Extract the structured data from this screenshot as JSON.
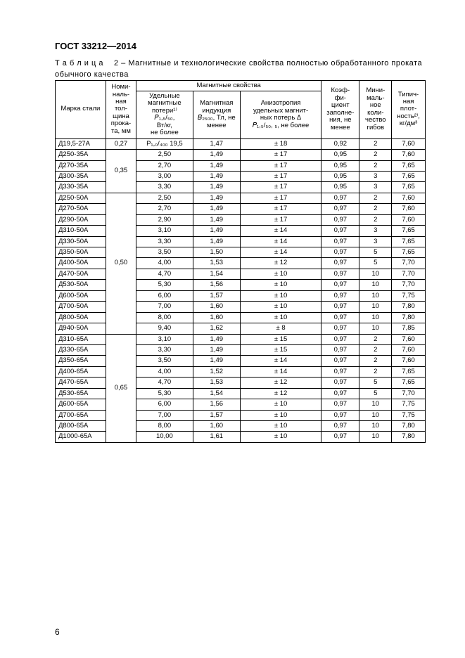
{
  "std_header": "ГОСТ 33212—2014",
  "caption_line1": "Т а б л и ц а  2 – Магнитные и технологические свойства полностью обработанного проката",
  "caption_line2": "обычного качества",
  "page_number": "6",
  "headers": {
    "c1": "Марка стали",
    "c2": "Номи-\nналь-\nная\nтол-\nщина\nпрока-\nта, мм",
    "magnetic_group": "Магнитные свойства",
    "c3": "Удельные\nмагнитные\nпотери¹⁾\n𝑃₁,₅/₅₀,\nВт/кг,\nне более",
    "c4": "Магнитная\nиндукция\n𝐵₂₅₀₀, Тл, не\nменее",
    "c5": "Анизотропия\nудельных магнит-\nных потерь Δ\n𝑃₁,₅/₅₀, ₅, не более",
    "c6": "Коэф-\nфи-\nциент\nзаполне-\nния, не\nменее",
    "c7": "Мини-\nмаль-\nное\nколи-\nчество\nгибов",
    "c8": "Типич-\nная\nплот-\nность²⁾,\nкг/дм³"
  },
  "groups": [
    {
      "thickness": "0,27",
      "rows": [
        {
          "grade": "Д19,5-27А",
          "loss": "P₁,₀/₄₀₀ 19,5",
          "B": "1,47",
          "aniso": "± 18",
          "fill": "0,92",
          "bends": "2",
          "density": "7,60"
        }
      ]
    },
    {
      "thickness": "0,35",
      "rows": [
        {
          "grade": "Д250-35А",
          "loss": "2,50",
          "B": "1,49",
          "aniso": "± 17",
          "fill": "0,95",
          "bends": "2",
          "density": "7,60"
        },
        {
          "grade": "Д270-35А",
          "loss": "2,70",
          "B": "1,49",
          "aniso": "± 17",
          "fill": "0,95",
          "bends": "2",
          "density": "7,65"
        },
        {
          "grade": "Д300-35А",
          "loss": "3,00",
          "B": "1,49",
          "aniso": "± 17",
          "fill": "0,95",
          "bends": "3",
          "density": "7,65"
        },
        {
          "grade": "Д330-35А",
          "loss": "3,30",
          "B": "1,49",
          "aniso": "± 17",
          "fill": "0,95",
          "bends": "3",
          "density": "7,65"
        }
      ]
    },
    {
      "thickness": "0,50",
      "rows": [
        {
          "grade": "Д250-50А",
          "loss": "2,50",
          "B": "1,49",
          "aniso": "± 17",
          "fill": "0,97",
          "bends": "2",
          "density": "7,60"
        },
        {
          "grade": "Д270-50А",
          "loss": "2,70",
          "B": "1,49",
          "aniso": "± 17",
          "fill": "0,97",
          "bends": "2",
          "density": "7,60"
        },
        {
          "grade": "Д290-50А",
          "loss": "2,90",
          "B": "1,49",
          "aniso": "± 17",
          "fill": "0,97",
          "bends": "2",
          "density": "7,60"
        },
        {
          "grade": "Д310-50А",
          "loss": "3,10",
          "B": "1,49",
          "aniso": "± 14",
          "fill": "0,97",
          "bends": "3",
          "density": "7,65"
        },
        {
          "grade": "Д330-50А",
          "loss": "3,30",
          "B": "1,49",
          "aniso": "± 14",
          "fill": "0,97",
          "bends": "3",
          "density": "7,65"
        },
        {
          "grade": "Д350-50А",
          "loss": "3,50",
          "B": "1,50",
          "aniso": "± 14",
          "fill": "0,97",
          "bends": "5",
          "density": "7,65"
        },
        {
          "grade": "Д400-50А",
          "loss": "4,00",
          "B": "1,53",
          "aniso": "± 12",
          "fill": "0,97",
          "bends": "5",
          "density": "7,70"
        },
        {
          "grade": "Д470-50А",
          "loss": "4,70",
          "B": "1,54",
          "aniso": "± 10",
          "fill": "0,97",
          "bends": "10",
          "density": "7,70"
        },
        {
          "grade": "Д530-50А",
          "loss": "5,30",
          "B": "1,56",
          "aniso": "± 10",
          "fill": "0,97",
          "bends": "10",
          "density": "7,70"
        },
        {
          "grade": "Д600-50А",
          "loss": "6,00",
          "B": "1,57",
          "aniso": "± 10",
          "fill": "0,97",
          "bends": "10",
          "density": "7,75"
        },
        {
          "grade": "Д700-50А",
          "loss": "7,00",
          "B": "1,60",
          "aniso": "± 10",
          "fill": "0,97",
          "bends": "10",
          "density": "7,80"
        },
        {
          "grade": "Д800-50А",
          "loss": "8,00",
          "B": "1,60",
          "aniso": "± 10",
          "fill": "0,97",
          "bends": "10",
          "density": "7,80"
        },
        {
          "grade": "Д940-50А",
          "loss": "9,40",
          "B": "1,62",
          "aniso": "± 8",
          "fill": "0,97",
          "bends": "10",
          "density": "7,85"
        }
      ]
    },
    {
      "thickness": "0,65",
      "rows": [
        {
          "grade": "Д310-65А",
          "loss": "3,10",
          "B": "1,49",
          "aniso": "± 15",
          "fill": "0,97",
          "bends": "2",
          "density": "7,60"
        },
        {
          "grade": "Д330-65А",
          "loss": "3,30",
          "B": "1,49",
          "aniso": "± 15",
          "fill": "0,97",
          "bends": "2",
          "density": "7,60"
        },
        {
          "grade": "Д350-65А",
          "loss": "3,50",
          "B": "1,49",
          "aniso": "± 14",
          "fill": "0,97",
          "bends": "2",
          "density": "7,60"
        },
        {
          "grade": "Д400-65А",
          "loss": "4,00",
          "B": "1,52",
          "aniso": "± 14",
          "fill": "0,97",
          "bends": "2",
          "density": "7,65"
        },
        {
          "grade": "Д470-65А",
          "loss": "4,70",
          "B": "1,53",
          "aniso": "± 12",
          "fill": "0,97",
          "bends": "5",
          "density": "7,65"
        },
        {
          "grade": "Д530-65А",
          "loss": "5,30",
          "B": "1,54",
          "aniso": "± 12",
          "fill": "0,97",
          "bends": "5",
          "density": "7,70"
        },
        {
          "grade": "Д600-65А",
          "loss": "6,00",
          "B": "1,56",
          "aniso": "± 10",
          "fill": "0,97",
          "bends": "10",
          "density": "7,75"
        },
        {
          "grade": "Д700-65А",
          "loss": "7,00",
          "B": "1,57",
          "aniso": "± 10",
          "fill": "0,97",
          "bends": "10",
          "density": "7,75"
        },
        {
          "grade": "Д800-65А",
          "loss": "8,00",
          "B": "1,60",
          "aniso": "± 10",
          "fill": "0,97",
          "bends": "10",
          "density": "7,80"
        },
        {
          "grade": "Д1000-65А",
          "loss": "10,00",
          "B": "1,61",
          "aniso": "± 10",
          "fill": "0,97",
          "bends": "10",
          "density": "7,80"
        }
      ]
    }
  ]
}
